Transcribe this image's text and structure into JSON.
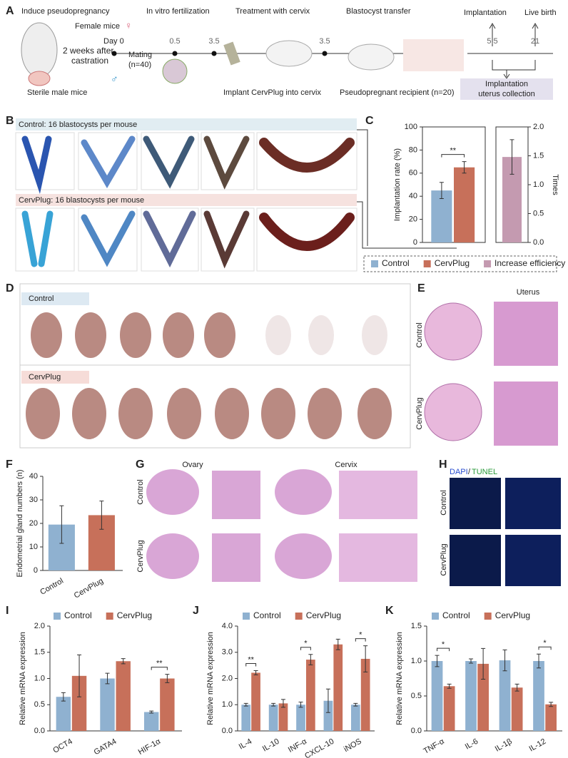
{
  "panel_labels": [
    "A",
    "B",
    "C",
    "D",
    "E",
    "F",
    "G",
    "H",
    "I",
    "J",
    "K"
  ],
  "panel_a": {
    "steps": [
      "Induce pseudopregnancy",
      "In vitro fertilization",
      "Treatment with cervix",
      "Blastocyst transfer",
      "Implantation",
      "Live birth"
    ],
    "female": "Female mice",
    "female_symbol": "♀",
    "male_symbol": "♂",
    "day0": "Day 0",
    "castration": [
      "2 weeks after",
      "castration"
    ],
    "male": "Sterile male mice",
    "mating": [
      "Mating",
      "(n=40)"
    ],
    "days": [
      0.5,
      3.5,
      3.5,
      5.5,
      21
    ],
    "implant": "Implant CervPlug into cervix",
    "recipient": "Pseudopregnant recipient (n=20)",
    "collection": [
      "Implantation",
      "uterus collection"
    ]
  },
  "panel_b": {
    "control": "Control: 16 blastocysts per mouse",
    "cervplug": "CervPlug: 16 blastocysts per mouse"
  },
  "panel_d": {
    "control": "Control",
    "cervplug": "CervPlug"
  },
  "panel_e": {
    "title": "Uterus",
    "control": "Control",
    "cervplug": "CervPlug"
  },
  "panel_g": {
    "ovary": "Ovary",
    "cervix": "Cervix",
    "control": "Control",
    "cervplug": "CervPlug"
  },
  "panel_h": {
    "title": [
      "DAPI",
      "/",
      "TUNEL"
    ],
    "control": "Control",
    "cervplug": "CervPlug"
  },
  "chart_data": [
    {
      "type": "bar",
      "ylabel": "Implantation rate (%)",
      "y2label": "Times",
      "categories": [
        null
      ],
      "series": [
        {
          "name": "Control",
          "color": "#8fb1d0",
          "values": [
            45
          ],
          "errors": [
            7
          ]
        },
        {
          "name": "CervPlug",
          "color": "#c7705a",
          "values": [
            65
          ],
          "errors": [
            5
          ]
        },
        {
          "name": "Increase efficiency",
          "color": "#c49ab0",
          "values": [
            1.48
          ],
          "errors": [
            0.3
          ],
          "axis": "y2"
        }
      ],
      "ylim": [
        0,
        100
      ],
      "yticks": [
        0,
        20,
        40,
        60,
        80,
        100
      ],
      "y2lim": [
        0,
        2
      ],
      "y2ticks": [
        {
          "value": 0,
          "label": "0.0"
        },
        {
          "value": 0.5,
          "label": "0.5"
        },
        {
          "value": 1,
          "label": "1.0"
        },
        {
          "value": 1.5,
          "label": "1.5"
        },
        {
          "value": 2,
          "label": "2.0"
        }
      ],
      "significance": [
        "**"
      ],
      "legend": "bottom"
    },
    {
      "type": "bar",
      "ylabel": "Endometrial gland numbers (n)",
      "categories": [
        "Control",
        "CervPlug"
      ],
      "values": [
        19.5,
        23.5
      ],
      "errors": [
        8,
        6
      ],
      "colors": [
        "#8fb1d0",
        "#c7705a"
      ],
      "ylim": [
        0,
        40
      ],
      "yticks": [
        0,
        10,
        20,
        30,
        40
      ]
    },
    {
      "type": "bar",
      "ylabel": "Relative mRNA expression",
      "categories": [
        "OCT4",
        "GATA4",
        "HIF-1α"
      ],
      "series": [
        {
          "name": "Control",
          "color": "#8fb1d0",
          "values": [
            0.65,
            1.0,
            0.36
          ],
          "errors": [
            0.08,
            0.1,
            0.02
          ]
        },
        {
          "name": "CervPlug",
          "color": "#c7705a",
          "values": [
            1.05,
            1.33,
            1.0
          ],
          "errors": [
            0.4,
            0.05,
            0.08
          ]
        }
      ],
      "ylim": [
        0,
        2
      ],
      "yticks": [
        {
          "value": 0,
          "label": "0.0"
        },
        {
          "value": 0.5,
          "label": "0.5"
        },
        {
          "value": 1,
          "label": "1.0"
        },
        {
          "value": 1.5,
          "label": "1.5"
        },
        {
          "value": 2,
          "label": "2.0"
        }
      ],
      "significance": [
        null,
        null,
        "**"
      ],
      "legend": "top"
    },
    {
      "type": "bar",
      "ylabel": "Relative mRNA expression",
      "categories": [
        "IL-4",
        "IL-10",
        "INF-α",
        "CXCL-10",
        "iNOS"
      ],
      "series": [
        {
          "name": "Control",
          "color": "#8fb1d0",
          "values": [
            1.0,
            1.0,
            1.0,
            1.15,
            1.0
          ],
          "errors": [
            0.05,
            0.05,
            0.1,
            0.45,
            0.05
          ]
        },
        {
          "name": "CervPlug",
          "color": "#c7705a",
          "values": [
            2.22,
            1.05,
            2.72,
            3.3,
            2.75
          ],
          "errors": [
            0.08,
            0.15,
            0.2,
            0.2,
            0.5
          ]
        }
      ],
      "ylim": [
        0,
        4
      ],
      "yticks": [
        {
          "value": 0,
          "label": "0.0"
        },
        {
          "value": 1,
          "label": "1.0"
        },
        {
          "value": 2,
          "label": "2.0"
        },
        {
          "value": 3,
          "label": "3.0"
        },
        {
          "value": 4,
          "label": "4.0"
        }
      ],
      "significance": [
        "**",
        null,
        "*",
        null,
        "*"
      ],
      "legend": "top"
    },
    {
      "type": "bar",
      "ylabel": "Relative mRNA expression",
      "categories": [
        "TNF-α",
        "IL-6",
        "IL-1β",
        "IL-12"
      ],
      "series": [
        {
          "name": "Control",
          "color": "#8fb1d0",
          "values": [
            1.0,
            1.0,
            1.01,
            1.0
          ],
          "errors": [
            0.08,
            0.03,
            0.15,
            0.1
          ]
        },
        {
          "name": "CervPlug",
          "color": "#c7705a",
          "values": [
            0.64,
            0.96,
            0.62,
            0.38
          ],
          "errors": [
            0.03,
            0.22,
            0.05,
            0.03
          ]
        }
      ],
      "ylim": [
        0,
        1.5
      ],
      "yticks": [
        {
          "value": 0,
          "label": "0.0"
        },
        {
          "value": 0.5,
          "label": "0.5"
        },
        {
          "value": 1,
          "label": "1.0"
        },
        {
          "value": 1.5,
          "label": "1.5"
        }
      ],
      "significance": [
        "*",
        null,
        null,
        "*"
      ],
      "legend": "top"
    }
  ]
}
